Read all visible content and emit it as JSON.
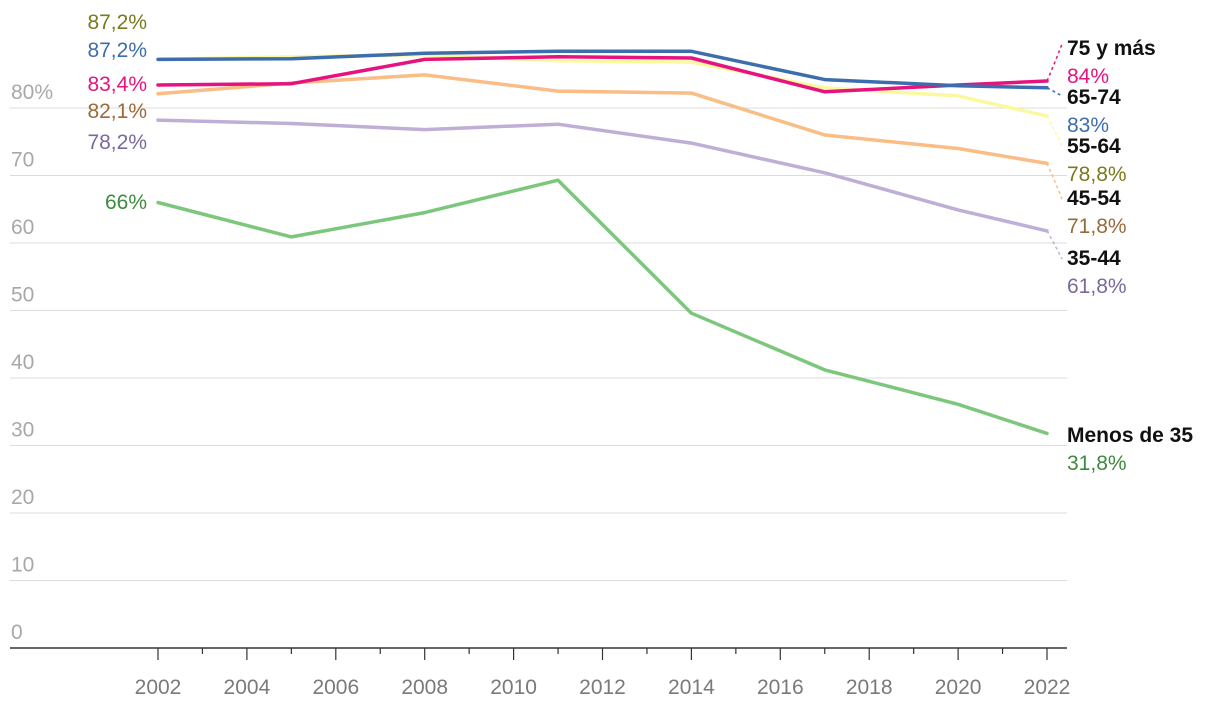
{
  "chart_data": {
    "type": "line",
    "title": "",
    "xlabel": "",
    "ylabel": "",
    "x_ticks": [
      "2002",
      "2004",
      "2006",
      "2008",
      "2010",
      "2012",
      "2014",
      "2016",
      "2018",
      "2020",
      "2022"
    ],
    "y_ticks": [
      0,
      10,
      20,
      30,
      40,
      50,
      60,
      70,
      80
    ],
    "y_tick_labels": [
      "0",
      "10",
      "20",
      "30",
      "40",
      "50",
      "60",
      "70",
      "80%"
    ],
    "xlim": [
      1998.5,
      2022.5
    ],
    "ylim": [
      0,
      90
    ],
    "grid": true,
    "series": [
      {
        "name": "Menos de 35",
        "color": "#7cc77c",
        "label_color": "#3e8a3e",
        "points": [
          [
            2002,
            66.0
          ],
          [
            2005,
            60.9
          ],
          [
            2008,
            64.5
          ],
          [
            2011,
            69.3
          ],
          [
            2014,
            49.6
          ],
          [
            2017,
            41.2
          ],
          [
            2020,
            36.1
          ],
          [
            2022,
            31.8
          ]
        ],
        "start_label": "66%",
        "end_label": "31,8%"
      },
      {
        "name": "35-44",
        "color": "#bfaed6",
        "label_color": "#7a6a9a",
        "points": [
          [
            2002,
            78.2
          ],
          [
            2005,
            77.7
          ],
          [
            2008,
            76.8
          ],
          [
            2011,
            77.6
          ],
          [
            2014,
            74.8
          ],
          [
            2017,
            70.4
          ],
          [
            2020,
            64.9
          ],
          [
            2022,
            61.8
          ]
        ],
        "start_label": "78,2%",
        "end_label": "61,8%"
      },
      {
        "name": "45-54",
        "color": "#f9bd85",
        "label_color": "#9a6a3a",
        "points": [
          [
            2002,
            82.1
          ],
          [
            2005,
            83.7
          ],
          [
            2008,
            84.9
          ],
          [
            2011,
            82.5
          ],
          [
            2014,
            82.2
          ],
          [
            2017,
            76.0
          ],
          [
            2020,
            74.0
          ],
          [
            2022,
            71.8
          ]
        ],
        "start_label": "82,1%",
        "end_label": "71,8%"
      },
      {
        "name": "55-64",
        "color": "#fbf9a0",
        "label_color": "#7a7a1e",
        "points": [
          [
            2002,
            87.2
          ],
          [
            2005,
            87.6
          ],
          [
            2008,
            87.9
          ],
          [
            2011,
            87.0
          ],
          [
            2014,
            86.8
          ],
          [
            2017,
            83.0
          ],
          [
            2020,
            81.8
          ],
          [
            2022,
            78.8
          ]
        ],
        "start_label": "87,2%",
        "end_label": "78,8%"
      },
      {
        "name": "75 y más",
        "color": "#e6137f",
        "label_color": "#e6137f",
        "points": [
          [
            2002,
            83.4
          ],
          [
            2005,
            83.6
          ],
          [
            2008,
            87.2
          ],
          [
            2011,
            87.6
          ],
          [
            2014,
            87.4
          ],
          [
            2017,
            82.4
          ],
          [
            2020,
            83.4
          ],
          [
            2022,
            84.0
          ]
        ],
        "start_label": "83,4%",
        "end_label": "84%"
      },
      {
        "name": "65-74",
        "color": "#3c6eae",
        "label_color": "#3c6eae",
        "points": [
          [
            2002,
            87.2
          ],
          [
            2005,
            87.3
          ],
          [
            2008,
            88.1
          ],
          [
            2011,
            88.4
          ],
          [
            2014,
            88.4
          ],
          [
            2017,
            84.2
          ],
          [
            2020,
            83.3
          ],
          [
            2022,
            83.0
          ]
        ],
        "start_label": "87,2%",
        "end_label": "83%"
      }
    ]
  }
}
